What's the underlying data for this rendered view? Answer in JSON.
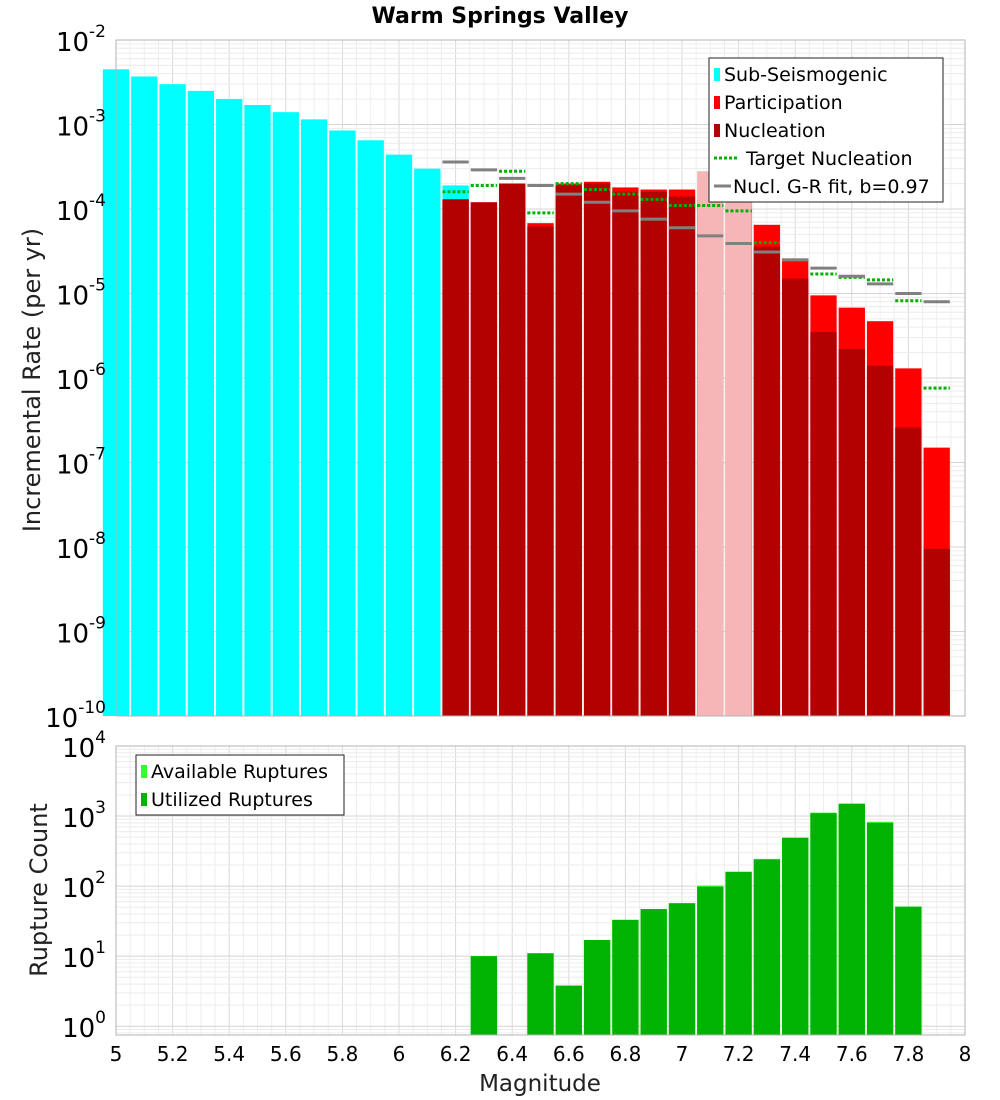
{
  "chart_data": [
    {
      "type": "bar",
      "title": "Warm Springs Valley",
      "xlabel": "",
      "ylabel": "Incremental Rate (per yr)",
      "xlim": [
        5,
        8
      ],
      "ylim": [
        1e-10,
        0.01
      ],
      "yscale": "log",
      "y_tick_bases": [
        "10",
        "10",
        "10",
        "10",
        "10",
        "10",
        "10",
        "10",
        "10"
      ],
      "y_tick_exponents": [
        "-2",
        "-3",
        "-4",
        "-5",
        "-6",
        "-7",
        "-8",
        "-9",
        "-10"
      ],
      "y_tick_values": [
        0.01,
        0.001,
        0.0001,
        1e-05,
        1e-06,
        1e-07,
        1e-08,
        1e-09,
        1e-10
      ],
      "legend_position": "top-right",
      "bin_width": 0.1,
      "series": [
        {
          "name": "Sub-Seismogenic",
          "color": "#00ffff",
          "x": [
            5.0,
            5.1,
            5.2,
            5.3,
            5.4,
            5.5,
            5.6,
            5.7,
            5.8,
            5.9,
            6.0,
            6.1,
            6.2
          ],
          "values": [
            0.0045,
            0.0037,
            0.003,
            0.0025,
            0.002,
            0.0017,
            0.0014,
            0.00115,
            0.00085,
            0.00065,
            0.00044,
            0.0003,
            0.00019
          ]
        },
        {
          "name": "Participation",
          "color": "#ff0000",
          "x": [
            6.2,
            6.3,
            6.4,
            6.5,
            6.6,
            6.7,
            6.8,
            6.9,
            7.0,
            7.1,
            7.2,
            7.3,
            7.4,
            7.5,
            7.6,
            7.7,
            7.8,
            7.9
          ],
          "values": [
            0.00013,
            0.00012,
            0.0002,
            6.8e-05,
            0.0002,
            0.00021,
            0.00018,
            0.00017,
            0.00017,
            0.00013,
            0.00013,
            6.5e-05,
            2.5e-05,
            9.5e-06,
            6.8e-06,
            4.7e-06,
            1.3e-06,
            1.5e-07
          ]
        },
        {
          "name": "Nucleation",
          "color": "#b30000",
          "x": [
            6.2,
            6.3,
            6.4,
            6.5,
            6.6,
            6.7,
            6.8,
            6.9,
            7.0,
            7.1,
            7.2,
            7.3,
            7.4,
            7.5,
            7.6,
            7.7,
            7.8,
            7.9
          ],
          "values": [
            0.00013,
            0.00012,
            0.0002,
            6.2e-05,
            0.00019,
            0.0002,
            0.00016,
            0.00016,
            0.00014,
            0.00011,
            0.00011,
            3.6e-05,
            1.5e-05,
            3.5e-06,
            2.2e-06,
            1.4e-06,
            2.6e-07,
            9.5e-09
          ]
        },
        {
          "name": "Nucleation (light overlay)",
          "color": "#f4b6b6",
          "x": [
            7.1,
            7.2
          ],
          "values": [
            0.00028,
            0.00023
          ]
        },
        {
          "name": "Target Nucleation",
          "color": "#00b000",
          "style": "dotted-step",
          "x": [
            6.2,
            6.3,
            6.4,
            6.5,
            6.6,
            6.7,
            6.8,
            6.9,
            7.0,
            7.1,
            7.2,
            7.3,
            7.4,
            7.5,
            7.6,
            7.7,
            7.8,
            7.9
          ],
          "values": [
            0.00016,
            0.00019,
            0.00028,
            9e-05,
            0.0002,
            0.00017,
            0.00015,
            0.00013,
            0.00011,
            0.00011,
            9.5e-05,
            4e-05,
            2.5e-05,
            1.7e-05,
            1.55e-05,
            1.45e-05,
            8.2e-06,
            7.6e-07
          ]
        },
        {
          "name": "Nucl. G-R fit, b=0.97",
          "color": "#808080",
          "style": "solid-step",
          "x": [
            6.2,
            6.3,
            6.4,
            6.5,
            6.6,
            6.7,
            6.8,
            6.9,
            7.0,
            7.1,
            7.2,
            7.3,
            7.4,
            7.5,
            7.6,
            7.7,
            7.8,
            7.9
          ],
          "values": [
            0.00036,
            0.00029,
            0.00023,
            0.00019,
            0.00015,
            0.00012,
            9.5e-05,
            7.6e-05,
            6e-05,
            4.8e-05,
            3.9e-05,
            3.1e-05,
            2.5e-05,
            2e-05,
            1.6e-05,
            1.3e-05,
            1e-05,
            8e-06
          ]
        }
      ],
      "legend": [
        "Sub-Seismogenic",
        "Participation",
        "Nucleation",
        "Target Nucleation",
        "Nucl. G-R fit, b=0.97"
      ]
    },
    {
      "type": "bar",
      "title": "",
      "xlabel": "Magnitude",
      "ylabel": "Rupture Count",
      "xlim": [
        5,
        8
      ],
      "ylim": [
        0.75,
        10000
      ],
      "yscale": "log",
      "y_tick_bases": [
        "10",
        "10",
        "10",
        "10",
        "10"
      ],
      "y_tick_exponents": [
        "4",
        "3",
        "2",
        "1",
        "0"
      ],
      "y_tick_values": [
        10000,
        1000,
        100,
        10,
        1
      ],
      "x_tick_labels": [
        "5",
        "5.2",
        "5.4",
        "5.6",
        "5.8",
        "6",
        "6.2",
        "6.4",
        "6.6",
        "6.8",
        "7",
        "7.2",
        "7.4",
        "7.6",
        "7.8",
        "8"
      ],
      "x_tick_values": [
        5,
        5.2,
        5.4,
        5.6,
        5.8,
        6,
        6.2,
        6.4,
        6.6,
        6.8,
        7,
        7.2,
        7.4,
        7.6,
        7.8,
        8
      ],
      "legend_position": "top-left",
      "bin_width": 0.1,
      "series": [
        {
          "name": "Available Ruptures",
          "color": "#33ff33",
          "x": [
            6.3,
            6.5,
            6.6,
            6.7,
            6.8,
            6.9,
            7.0,
            7.1,
            7.2,
            7.3,
            7.4,
            7.5,
            7.6,
            7.7,
            7.8
          ],
          "values": [
            10,
            11,
            3.8,
            17,
            33,
            47,
            57,
            102,
            160,
            245,
            490,
            1120,
            1500,
            830,
            51
          ]
        },
        {
          "name": "Utilized Ruptures",
          "color": "#00b300",
          "x": [
            6.3,
            6.5,
            6.6,
            6.7,
            6.8,
            6.9,
            7.0,
            7.1,
            7.2,
            7.3,
            7.4,
            7.5,
            7.6,
            7.7,
            7.8
          ],
          "values": [
            10,
            11,
            3.8,
            17,
            33,
            47,
            57,
            98,
            160,
            240,
            490,
            1100,
            1500,
            800,
            51
          ]
        }
      ],
      "legend": [
        "Available Ruptures",
        "Utilized Ruptures"
      ]
    }
  ]
}
